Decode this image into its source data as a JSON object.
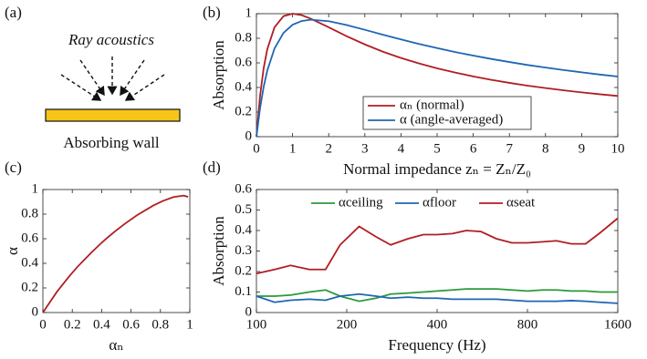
{
  "diagram": {
    "label": "(a)",
    "title": "Ray acoustics",
    "caption": "Absorbing wall"
  },
  "chart_data": [
    {
      "type": "line",
      "title": "(b)",
      "xlabel": "Normal impedance zₙ = Zₙ/Z₀",
      "ylabel": "Absorption",
      "x": [
        0,
        0.1,
        0.2,
        0.3,
        0.5,
        0.75,
        1,
        1.25,
        1.5,
        2,
        2.5,
        3,
        3.5,
        4,
        4.5,
        5,
        5.5,
        6,
        6.5,
        7,
        7.5,
        8,
        8.5,
        9,
        9.5,
        10
      ],
      "series": [
        {
          "name": "αₙ (normal)",
          "color": "#b01e23",
          "values": [
            0,
            0.331,
            0.556,
            0.71,
            0.889,
            0.98,
            1,
            0.988,
            0.96,
            0.889,
            0.816,
            0.75,
            0.691,
            0.64,
            0.595,
            0.556,
            0.521,
            0.49,
            0.462,
            0.4375,
            0.415,
            0.395,
            0.377,
            0.36,
            0.345,
            0.331
          ]
        },
        {
          "name": "α (angle-averaged)",
          "color": "#1f66b3",
          "values": [
            0,
            0.231,
            0.405,
            0.537,
            0.717,
            0.844,
            0.91,
            0.94,
            0.951,
            0.939,
            0.907,
            0.869,
            0.829,
            0.791,
            0.754,
            0.72,
            0.688,
            0.659,
            0.632,
            0.607,
            0.583,
            0.562,
            0.542,
            0.523,
            0.505,
            0.489
          ]
        }
      ],
      "xlim": [
        0,
        10
      ],
      "xticks": [
        0,
        1,
        2,
        3,
        4,
        5,
        6,
        7,
        8,
        9,
        10
      ],
      "ylim": [
        0,
        1
      ],
      "yticks": [
        0,
        0.2,
        0.4,
        0.6,
        0.8,
        1
      ],
      "legend": "lower right",
      "log_x": false
    },
    {
      "type": "line",
      "title": "(c)",
      "xlabel": "αₙ",
      "ylabel": "α",
      "x": [
        0,
        0.095,
        0.181,
        0.234,
        0.331,
        0.395,
        0.4375,
        0.49,
        0.556,
        0.64,
        0.75,
        0.816,
        0.889,
        0.96,
        0.988
      ],
      "series": [
        {
          "color": "#b01e23",
          "values": [
            0,
            0.168,
            0.297,
            0.37,
            0.489,
            0.562,
            0.607,
            0.659,
            0.72,
            0.791,
            0.869,
            0.907,
            0.939,
            0.951,
            0.94
          ]
        }
      ],
      "xlim": [
        0,
        1
      ],
      "xticks": [
        0,
        0.2,
        0.4,
        0.6,
        0.8,
        1
      ],
      "ylim": [
        0,
        1
      ],
      "yticks": [
        0,
        0.2,
        0.4,
        0.6,
        0.8,
        1
      ],
      "log_x": false
    },
    {
      "type": "line",
      "title": "(d)",
      "xlabel": "Frequency (Hz)",
      "ylabel": "Absorption",
      "x": [
        100,
        115,
        130,
        150,
        170,
        190,
        220,
        250,
        280,
        320,
        360,
        400,
        450,
        500,
        560,
        630,
        710,
        800,
        900,
        1000,
        1120,
        1250,
        1400,
        1600
      ],
      "series": [
        {
          "name": "αceiling",
          "color": "#2a9a3c",
          "values": [
            0.08,
            0.08,
            0.085,
            0.1,
            0.11,
            0.08,
            0.055,
            0.07,
            0.09,
            0.095,
            0.1,
            0.105,
            0.11,
            0.115,
            0.115,
            0.115,
            0.11,
            0.105,
            0.11,
            0.11,
            0.105,
            0.105,
            0.1,
            0.1
          ]
        },
        {
          "name": "αfloor",
          "color": "#1f66b3",
          "values": [
            0.08,
            0.05,
            0.06,
            0.065,
            0.06,
            0.08,
            0.09,
            0.08,
            0.07,
            0.075,
            0.07,
            0.07,
            0.065,
            0.065,
            0.065,
            0.065,
            0.06,
            0.055,
            0.055,
            0.055,
            0.058,
            0.055,
            0.05,
            0.045
          ]
        },
        {
          "name": "αseat",
          "color": "#b01e23",
          "values": [
            0.19,
            0.21,
            0.23,
            0.21,
            0.21,
            0.33,
            0.42,
            0.37,
            0.33,
            0.36,
            0.38,
            0.38,
            0.385,
            0.4,
            0.395,
            0.36,
            0.34,
            0.34,
            0.345,
            0.35,
            0.335,
            0.335,
            0.39,
            0.46
          ]
        }
      ],
      "xlim": [
        100,
        1600
      ],
      "xticks": [
        100,
        200,
        400,
        800,
        1600
      ],
      "ylim": [
        0,
        0.6
      ],
      "yticks": [
        0,
        0.1,
        0.2,
        0.3,
        0.4,
        0.5,
        0.6
      ],
      "legend": "upper center",
      "log_x": true
    }
  ]
}
